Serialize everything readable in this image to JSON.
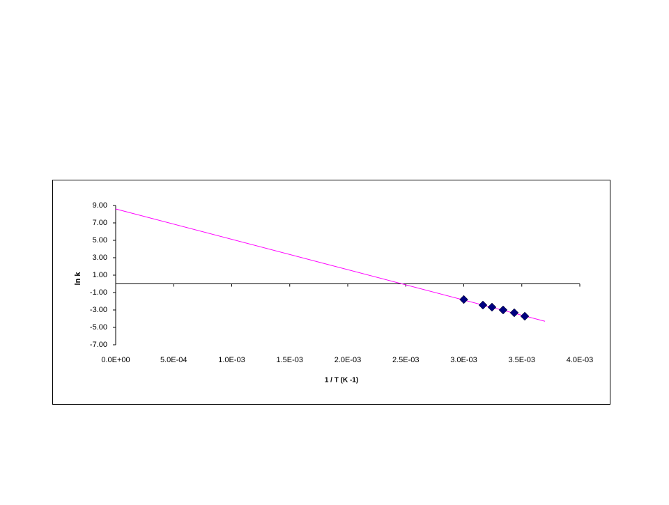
{
  "chart_data": {
    "type": "scatter",
    "x_label": "1 / T (K -1)",
    "y_label": "ln k",
    "xlim": [
      0,
      0.004
    ],
    "ylim": [
      -7,
      9
    ],
    "xticks": [
      {
        "value": 0,
        "label": "0.0E+00"
      },
      {
        "value": 0.0005,
        "label": "5.0E-04"
      },
      {
        "value": 0.001,
        "label": "1.0E-03"
      },
      {
        "value": 0.0015,
        "label": "1.5E-03"
      },
      {
        "value": 0.002,
        "label": "2.0E-03"
      },
      {
        "value": 0.0025,
        "label": "2.5E-03"
      },
      {
        "value": 0.003,
        "label": "3.0E-03"
      },
      {
        "value": 0.0035,
        "label": "3.5E-03"
      },
      {
        "value": 0.004,
        "label": "4.0E-03"
      }
    ],
    "yticks": [
      {
        "value": 9,
        "label": "9.00"
      },
      {
        "value": 7,
        "label": "7.00"
      },
      {
        "value": 5,
        "label": "5.00"
      },
      {
        "value": 3,
        "label": "3.00"
      },
      {
        "value": 1,
        "label": "1.00"
      },
      {
        "value": -1,
        "label": "-1.00"
      },
      {
        "value": -3,
        "label": "-3.00"
      },
      {
        "value": -5,
        "label": "-5.00"
      },
      {
        "value": -7,
        "label": "-7.00"
      }
    ],
    "series": [
      {
        "color": "#000080",
        "marker": "diamond",
        "x": [
          0.003,
          0.003165,
          0.003243,
          0.003339,
          0.003435,
          0.003526
        ],
        "values": [
          -1.8,
          -2.44,
          -2.68,
          -3.0,
          -3.32,
          -3.72
        ]
      }
    ],
    "trendline": {
      "color": "#ff00ff",
      "x": [
        0,
        0.0037
      ],
      "values": [
        8.6,
        -4.3
      ]
    }
  }
}
